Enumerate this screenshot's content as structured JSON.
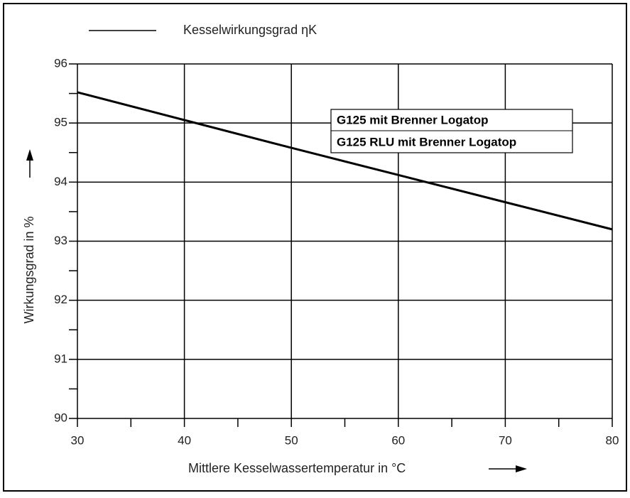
{
  "chart_data": {
    "type": "line",
    "x": [
      30,
      40,
      50,
      60,
      70,
      80
    ],
    "series": [
      {
        "name": "Kesselwirkungsgrad ηK",
        "color": "#000000",
        "values": [
          95.52,
          95.05,
          94.58,
          94.12,
          93.66,
          93.2
        ]
      }
    ],
    "xlim": [
      30,
      80
    ],
    "xticks": [
      30,
      40,
      50,
      60,
      70,
      80
    ],
    "xminor_ticks": [
      35,
      45,
      55,
      65,
      75
    ],
    "ylim": [
      90,
      96
    ],
    "yticks": [
      90,
      91,
      92,
      93,
      94,
      95,
      96
    ],
    "yminor_ticks": [
      90.5,
      91.5,
      92.5,
      93.5,
      94.5,
      95.5
    ],
    "grid": true,
    "xlabel": "Mittlere Kesselwassertemperatur in °C",
    "ylabel": "Wirkungsgrad in %",
    "annotations": [
      "G125 mit Brenner Logatop",
      "G125 RLU mit Brenner Logatop"
    ]
  }
}
